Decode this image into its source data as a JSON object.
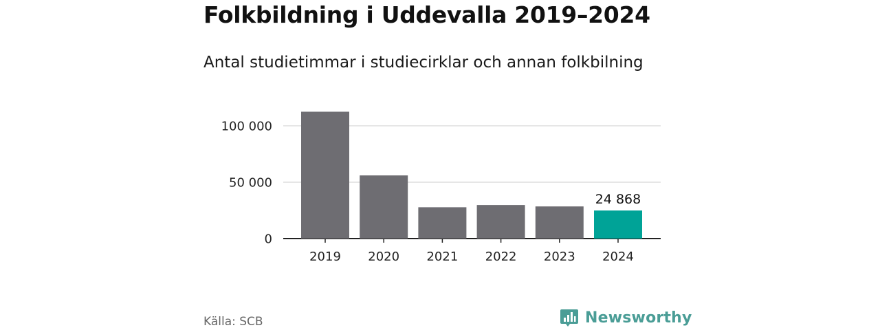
{
  "title": "Folkbildning i Uddevalla 2019–2024",
  "subtitle": "Antal studietimmar i studiecirklar och annan folkbilning",
  "source": "Källa: SCB",
  "brand": {
    "name": "Newsworthy",
    "icon": "newsworthy-logo-icon",
    "color": "#4a9d96"
  },
  "colors": {
    "bar": "#6e6d72",
    "highlight": "#00a397",
    "grid": "#dddddd",
    "axis": "#222222"
  },
  "chart_data": {
    "type": "bar",
    "categories": [
      "2019",
      "2020",
      "2021",
      "2022",
      "2023",
      "2024"
    ],
    "values": [
      112500,
      56000,
      27800,
      29800,
      28500,
      24868
    ],
    "highlight_index": 5,
    "data_labels": [
      {
        "category": "2024",
        "text": "24 868"
      }
    ],
    "yticks": [
      {
        "value": 0,
        "label": "0"
      },
      {
        "value": 50000,
        "label": "50 000"
      },
      {
        "value": 100000,
        "label": "100 000"
      }
    ],
    "ylim": [
      0,
      120000
    ],
    "grid": true,
    "legend": "none"
  }
}
